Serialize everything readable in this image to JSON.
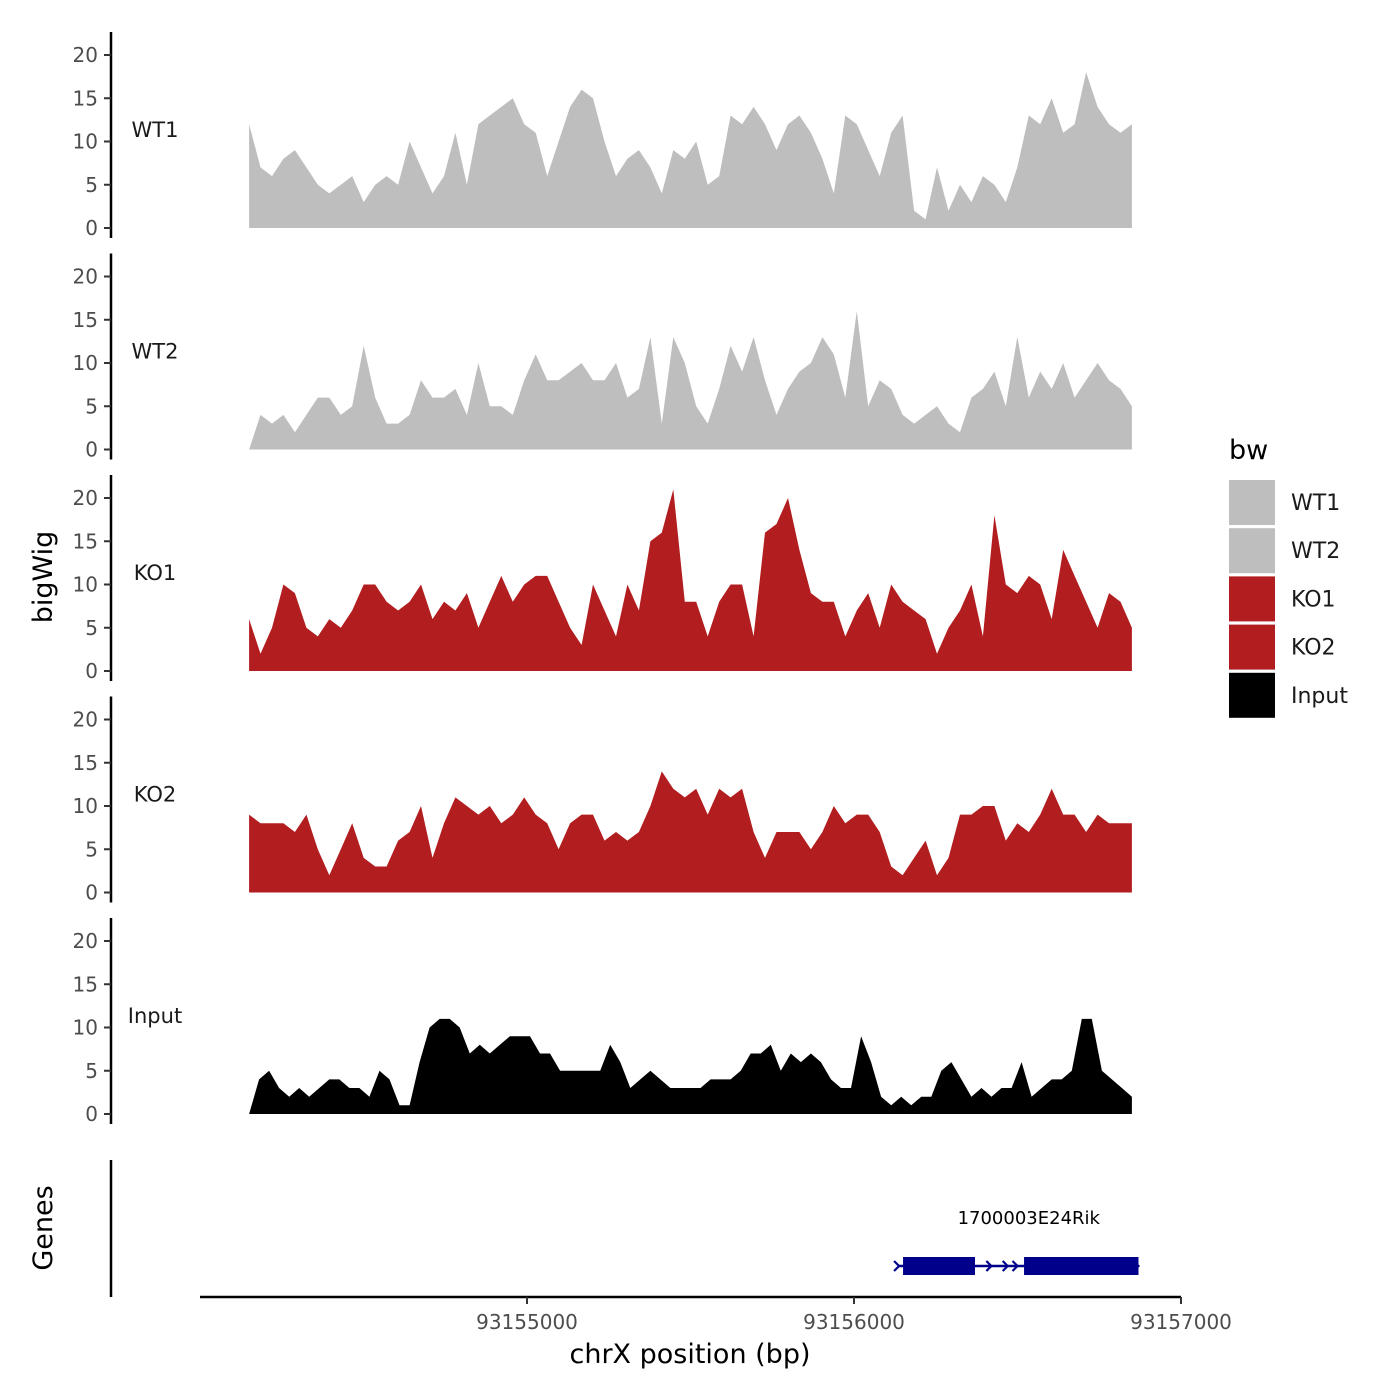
{
  "chart_data": {
    "type": "area",
    "xlabel": "chrX position (bp)",
    "ylabel": "bigWig",
    "genes_label": "Genes",
    "xlim": [
      93154000,
      93157000
    ],
    "x_ticks": [
      93155000,
      93156000,
      93157000
    ],
    "ylim": [
      0,
      22
    ],
    "y_ticks": [
      0,
      5,
      10,
      15,
      20
    ],
    "x_start": 93154150,
    "x_end": 93156850,
    "legend": {
      "title": "bw",
      "placement": "right",
      "entries": [
        {
          "name": "WT1",
          "color": "#BEBEBE"
        },
        {
          "name": "WT2",
          "color": "#BEBEBE"
        },
        {
          "name": "KO1",
          "color": "#B21D1F"
        },
        {
          "name": "KO2",
          "color": "#B21D1F"
        },
        {
          "name": "Input",
          "color": "#000000"
        }
      ]
    },
    "series": [
      {
        "name": "WT1",
        "color": "#BEBEBE",
        "values": [
          12,
          7,
          6,
          8,
          9,
          7,
          5,
          4,
          5,
          6,
          3,
          5,
          6,
          5,
          10,
          7,
          4,
          6,
          11,
          5,
          12,
          13,
          14,
          15,
          12,
          11,
          6,
          10,
          14,
          16,
          15,
          10,
          6,
          8,
          9,
          7,
          4,
          9,
          8,
          10,
          5,
          6,
          13,
          12,
          14,
          12,
          9,
          12,
          13,
          11,
          8,
          4,
          13,
          12,
          9,
          6,
          11,
          13,
          2,
          1,
          7,
          2,
          5,
          3,
          6,
          5,
          3,
          7,
          13,
          12,
          15,
          11,
          12,
          18,
          14,
          12,
          11,
          12
        ]
      },
      {
        "name": "WT2",
        "color": "#BEBEBE",
        "values": [
          0,
          4,
          3,
          4,
          2,
          4,
          6,
          6,
          4,
          5,
          12,
          6,
          3,
          3,
          4,
          8,
          6,
          6,
          7,
          4,
          10,
          5,
          5,
          4,
          8,
          11,
          8,
          8,
          9,
          10,
          8,
          8,
          10,
          6,
          7,
          13,
          3,
          13,
          10,
          5,
          3,
          7,
          12,
          9,
          13,
          8,
          4,
          7,
          9,
          10,
          13,
          11,
          6,
          16,
          5,
          8,
          7,
          4,
          3,
          4,
          5,
          3,
          2,
          6,
          7,
          9,
          5,
          13,
          6,
          9,
          7,
          10,
          6,
          8,
          10,
          8,
          7,
          5
        ]
      },
      {
        "name": "KO1",
        "color": "#B21D1F",
        "values": [
          6,
          2,
          5,
          10,
          9,
          5,
          4,
          6,
          5,
          7,
          10,
          10,
          8,
          7,
          8,
          10,
          6,
          8,
          7,
          9,
          5,
          8,
          11,
          8,
          10,
          11,
          11,
          8,
          5,
          3,
          10,
          7,
          4,
          10,
          7,
          15,
          16,
          21,
          8,
          8,
          4,
          8,
          10,
          10,
          4,
          16,
          17,
          20,
          14,
          9,
          8,
          8,
          4,
          7,
          9,
          5,
          10,
          8,
          7,
          6,
          2,
          5,
          7,
          10,
          4,
          18,
          10,
          9,
          11,
          10,
          6,
          14,
          11,
          8,
          5,
          9,
          8,
          5
        ]
      },
      {
        "name": "KO2",
        "color": "#B21D1F",
        "values": [
          9,
          8,
          8,
          8,
          7,
          9,
          5,
          2,
          5,
          8,
          4,
          3,
          3,
          6,
          7,
          10,
          4,
          8,
          11,
          10,
          9,
          10,
          8,
          9,
          11,
          9,
          8,
          5,
          8,
          9,
          9,
          6,
          7,
          6,
          7,
          10,
          14,
          12,
          11,
          12,
          9,
          12,
          11,
          12,
          7,
          4,
          7,
          7,
          7,
          5,
          7,
          10,
          8,
          9,
          9,
          7,
          3,
          2,
          4,
          6,
          2,
          4,
          9,
          9,
          10,
          10,
          6,
          8,
          7,
          9,
          12,
          9,
          9,
          7,
          9,
          8,
          8,
          8
        ]
      },
      {
        "name": "Input",
        "color": "#000000",
        "values": [
          0,
          4,
          5,
          3,
          2,
          3,
          2,
          3,
          4,
          4,
          3,
          3,
          2,
          5,
          4,
          1,
          1,
          6,
          10,
          11,
          11,
          10,
          7,
          8,
          7,
          8,
          9,
          9,
          9,
          7,
          7,
          5,
          5,
          5,
          5,
          5,
          8,
          6,
          3,
          4,
          5,
          4,
          3,
          3,
          3,
          3,
          4,
          4,
          4,
          5,
          7,
          7,
          8,
          5,
          7,
          6,
          7,
          6,
          4,
          3,
          3,
          9,
          6,
          2,
          1,
          2,
          1,
          2,
          2,
          5,
          6,
          4,
          2,
          3,
          2,
          3,
          3,
          6,
          2,
          3,
          4,
          4,
          5,
          11,
          11,
          5,
          4,
          3,
          2
        ]
      }
    ],
    "genes": [
      {
        "name": "1700003E24Rik",
        "start": 93156150,
        "end": 93156870,
        "exons": [
          [
            93156150,
            93156370
          ],
          [
            93156520,
            93156870
          ]
        ],
        "strand": "+",
        "color": "#00008B"
      }
    ]
  }
}
